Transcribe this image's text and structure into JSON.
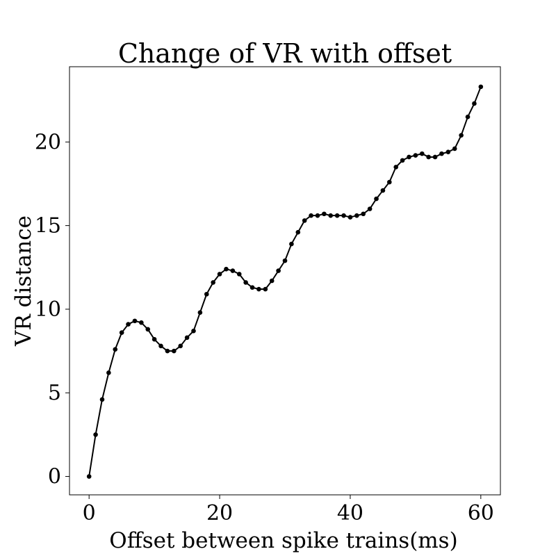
{
  "chart_data": {
    "type": "line",
    "title": "Change of VR with offset",
    "xlabel": "Offset between spike trains(ms)",
    "ylabel": "VR distance",
    "xlim": [
      -3,
      63
    ],
    "ylim": [
      -1.1,
      24.5
    ],
    "xticks": [
      0,
      20,
      40,
      60
    ],
    "yticks": [
      0,
      5,
      10,
      15,
      20
    ],
    "grid": false,
    "legend": false,
    "marker": "circle",
    "color": "#000000",
    "series": [
      {
        "x": [
          0,
          1,
          2,
          3,
          4,
          5,
          6,
          7,
          8,
          9,
          10,
          11,
          12,
          13,
          14,
          15,
          16,
          17,
          18,
          19,
          20,
          21,
          22,
          23,
          24,
          25,
          26,
          27,
          28,
          29,
          30,
          31,
          32,
          33,
          34,
          35,
          36,
          37,
          38,
          39,
          40,
          41,
          42,
          43,
          44,
          45,
          46,
          47,
          48,
          49,
          50,
          51,
          52,
          53,
          54,
          55,
          56,
          57,
          58,
          59,
          60
        ],
        "values": [
          0.0,
          2.5,
          4.6,
          6.2,
          7.6,
          8.6,
          9.1,
          9.3,
          9.2,
          8.8,
          8.2,
          7.8,
          7.5,
          7.5,
          7.8,
          8.3,
          8.7,
          9.8,
          10.9,
          11.6,
          12.1,
          12.4,
          12.3,
          12.1,
          11.6,
          11.3,
          11.2,
          11.2,
          11.7,
          12.3,
          12.9,
          13.9,
          14.6,
          15.3,
          15.6,
          15.6,
          15.7,
          15.6,
          15.6,
          15.6,
          15.5,
          15.6,
          15.7,
          16.0,
          16.6,
          17.1,
          17.6,
          18.5,
          18.9,
          19.1,
          19.2,
          19.3,
          19.1,
          19.1,
          19.3,
          19.4,
          19.6,
          20.4,
          21.5,
          22.3,
          23.3
        ]
      }
    ]
  }
}
